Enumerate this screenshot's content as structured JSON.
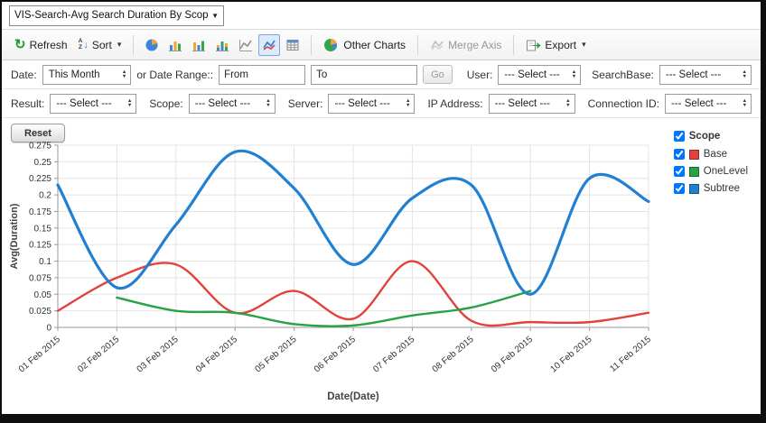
{
  "header": {
    "report_select_value": "VIS-Search-Avg Search Duration By Scop"
  },
  "icons": {
    "refresh": "↻",
    "caret": "▾",
    "dropdown": "▼",
    "sort_a": "A",
    "sort_z": "Z",
    "sort_arrow": "↓",
    "spin_up": "▲",
    "spin_down": "▼"
  },
  "toolbar": {
    "refresh": "Refresh",
    "sort": "Sort",
    "other_charts": "Other Charts",
    "merge_axis": "Merge Axis",
    "export": "Export"
  },
  "filters": {
    "row1": {
      "date_label": "Date:",
      "date_value": "This Month",
      "range_label": "or Date Range::",
      "from": "From",
      "to": "To",
      "go": "Go",
      "user_label": "User:",
      "user_value": "--- Select ---",
      "searchbase_label": "SearchBase:",
      "searchbase_value": "--- Select ---"
    },
    "row2": {
      "result_label": "Result:",
      "result_value": "--- Select ---",
      "scope_label": "Scope:",
      "scope_value": "--- Select ---",
      "server_label": "Server:",
      "server_value": "--- Select ---",
      "ip_label": "IP Address:",
      "ip_value": "--- Select ---",
      "conn_label": "Connection ID:",
      "conn_value": "--- Select ---"
    }
  },
  "reset_label": "Reset",
  "legend": {
    "title": "Scope",
    "title_checked": true,
    "items": [
      {
        "label": "Base",
        "color": "#e2423b",
        "checked": true
      },
      {
        "label": "OneLevel",
        "color": "#27a244",
        "checked": true
      },
      {
        "label": "Subtree",
        "color": "#2280d2",
        "checked": true
      }
    ]
  },
  "chart_data": {
    "type": "line",
    "title": "",
    "xlabel": "Date(Date)",
    "ylabel": "Avg(Duration)",
    "ylim": [
      0,
      0.275
    ],
    "ytick": 0.025,
    "grid": true,
    "legend_position": "right",
    "x": [
      "01 Feb 2015",
      "02 Feb 2015",
      "03 Feb 2015",
      "04 Feb 2015",
      "05 Feb 2015",
      "06 Feb 2015",
      "07 Feb 2015",
      "08 Feb 2015",
      "09 Feb 2015",
      "10 Feb 2015",
      "11 Feb 2015"
    ],
    "series": [
      {
        "name": "Base",
        "color": "#e2423b",
        "width": 2.4,
        "values": [
          0.025,
          0.075,
          0.095,
          0.022,
          0.055,
          0.013,
          0.1,
          0.01,
          0.008,
          0.008,
          0.022
        ]
      },
      {
        "name": "OneLevel",
        "color": "#27a244",
        "width": 2.4,
        "values": [
          null,
          0.045,
          0.025,
          0.022,
          0.005,
          0.003,
          0.018,
          0.03,
          0.055,
          null,
          null
        ]
      },
      {
        "name": "Subtree",
        "color": "#2280d2",
        "width": 3.2,
        "values": [
          0.215,
          0.06,
          0.155,
          0.265,
          0.21,
          0.095,
          0.195,
          0.215,
          0.05,
          0.225,
          0.19
        ]
      }
    ]
  }
}
